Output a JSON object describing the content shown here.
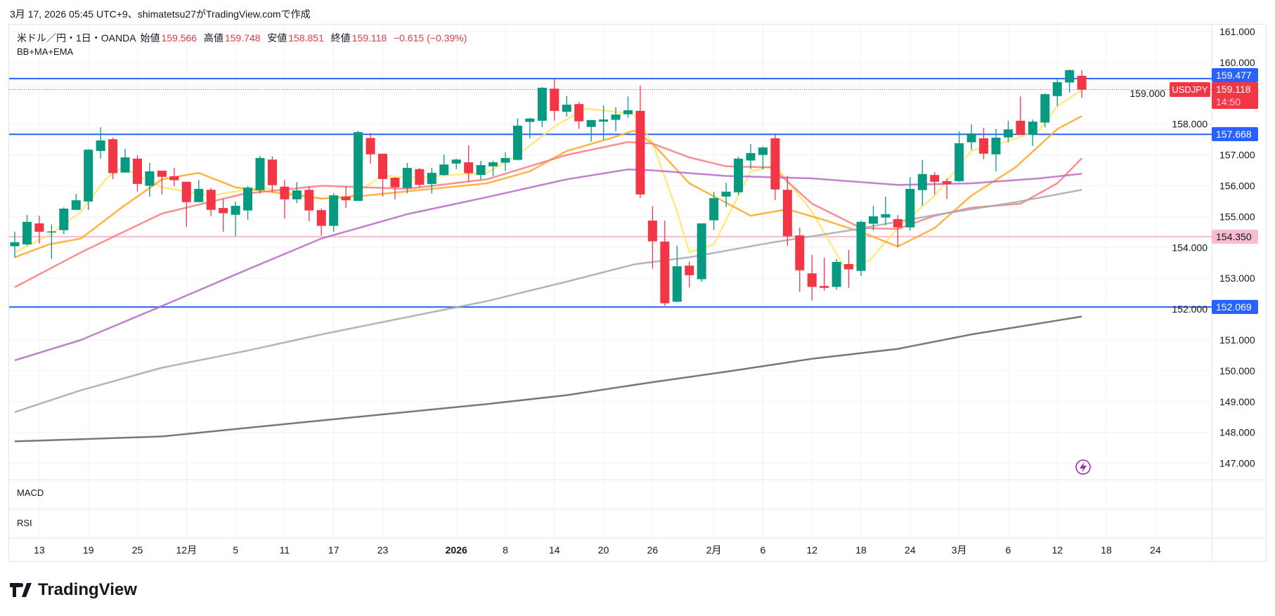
{
  "caption": "3月 17, 2026 05:45 UTC+9、shimatetsu27がTradingView.comで作成",
  "legend": {
    "symbol": "米ドル／円・1日・OANDA",
    "open_label": "始値",
    "open": "159.566",
    "high_label": "高値",
    "high": "159.748",
    "low_label": "安値",
    "low": "158.851",
    "close_label": "終値",
    "close": "159.118",
    "change": "−0.615 (−0.39%)",
    "indicators": "BB+MA+EMA"
  },
  "panes": {
    "macd": "MACD",
    "rsi": "RSI"
  },
  "symbol_tag": "USDJPY",
  "price_labels": {
    "last": "159.118",
    "countdown": "14:50",
    "levels": [
      {
        "text": "159.477",
        "value": 159.477,
        "color": "#2962FF"
      },
      {
        "text": "157.668",
        "value": 157.668,
        "color": "#2962FF"
      },
      {
        "text": "154.350",
        "value": 154.35,
        "color": "#f8bbd0"
      },
      {
        "text": "152.069",
        "value": 152.069,
        "color": "#2962FF"
      }
    ]
  },
  "brand": "TradingView",
  "colors": {
    "up": "#089981",
    "down": "#F23645",
    "level": "#2962FF",
    "pink": "#f8bbd0"
  },
  "chart_data": {
    "type": "candlestick",
    "symbol": "USDJPY",
    "y_ticks": [
      "147.000",
      "148.000",
      "149.000",
      "150.000",
      "151.000",
      "152.000",
      "153.000",
      "154.000",
      "155.000",
      "156.000",
      "157.000",
      "158.000",
      "159.000",
      "160.000",
      "161.000"
    ],
    "ylim": [
      146.7,
      161.25
    ],
    "x_ticks": [
      {
        "i": 2,
        "label": "13"
      },
      {
        "i": 6,
        "label": "19"
      },
      {
        "i": 10,
        "label": "25"
      },
      {
        "i": 14,
        "label": "12月"
      },
      {
        "i": 18,
        "label": "5"
      },
      {
        "i": 22,
        "label": "11"
      },
      {
        "i": 26,
        "label": "17"
      },
      {
        "i": 30,
        "label": "23"
      },
      {
        "i": 36,
        "label": "2026",
        "bold": true
      },
      {
        "i": 40,
        "label": "8"
      },
      {
        "i": 44,
        "label": "14"
      },
      {
        "i": 48,
        "label": "20"
      },
      {
        "i": 52,
        "label": "26"
      },
      {
        "i": 57,
        "label": "2月"
      },
      {
        "i": 61,
        "label": "6"
      },
      {
        "i": 65,
        "label": "12"
      },
      {
        "i": 69,
        "label": "18"
      },
      {
        "i": 73,
        "label": "24"
      },
      {
        "i": 77,
        "label": "3月"
      },
      {
        "i": 81,
        "label": "6"
      },
      {
        "i": 85,
        "label": "12"
      },
      {
        "i": 89,
        "label": "18"
      },
      {
        "i": 93,
        "label": "24"
      }
    ],
    "ohlc": [
      [
        154.04,
        154.51,
        153.67,
        154.17
      ],
      [
        154.1,
        155.05,
        154.05,
        154.83
      ],
      [
        154.78,
        155.03,
        154.13,
        154.51
      ],
      [
        154.5,
        154.75,
        153.63,
        154.52
      ],
      [
        154.56,
        155.3,
        154.43,
        155.26
      ],
      [
        155.22,
        155.74,
        155.22,
        155.53
      ],
      [
        155.49,
        157.19,
        155.22,
        157.17
      ],
      [
        157.13,
        157.9,
        156.88,
        157.47
      ],
      [
        157.51,
        157.56,
        156.22,
        156.41
      ],
      [
        156.43,
        157.2,
        156.43,
        156.92
      ],
      [
        156.88,
        156.99,
        155.81,
        156.06
      ],
      [
        156.0,
        156.74,
        155.65,
        156.47
      ],
      [
        156.49,
        156.49,
        155.72,
        156.29
      ],
      [
        156.31,
        156.58,
        155.99,
        156.18
      ],
      [
        156.13,
        156.13,
        154.67,
        155.47
      ],
      [
        155.47,
        156.19,
        155.47,
        155.9
      ],
      [
        155.87,
        155.93,
        155.02,
        155.22
      ],
      [
        155.28,
        155.57,
        154.51,
        155.11
      ],
      [
        155.06,
        155.49,
        154.36,
        155.35
      ],
      [
        155.2,
        155.99,
        154.9,
        155.94
      ],
      [
        155.86,
        156.97,
        155.75,
        156.9
      ],
      [
        156.85,
        156.95,
        155.81,
        156.02
      ],
      [
        155.97,
        156.18,
        154.94,
        155.56
      ],
      [
        155.56,
        156.12,
        155.44,
        155.85
      ],
      [
        155.87,
        155.99,
        154.85,
        155.2
      ],
      [
        155.21,
        155.27,
        154.39,
        154.7
      ],
      [
        154.7,
        155.76,
        154.51,
        155.69
      ],
      [
        155.65,
        155.99,
        155.28,
        155.53
      ],
      [
        155.51,
        157.79,
        155.51,
        157.74
      ],
      [
        157.55,
        157.71,
        156.72,
        157.02
      ],
      [
        157.04,
        157.04,
        155.65,
        156.22
      ],
      [
        156.26,
        156.28,
        155.56,
        155.95
      ],
      [
        155.93,
        156.74,
        155.76,
        156.58
      ],
      [
        156.54,
        156.58,
        155.94,
        156.03
      ],
      [
        156.06,
        156.58,
        155.75,
        156.42
      ],
      [
        156.35,
        157.01,
        156.33,
        156.69
      ],
      [
        156.72,
        156.88,
        156.54,
        156.85
      ],
      [
        156.76,
        157.31,
        156.14,
        156.41
      ],
      [
        156.35,
        156.81,
        156.18,
        156.67
      ],
      [
        156.63,
        156.81,
        156.31,
        156.76
      ],
      [
        156.75,
        157.08,
        156.48,
        156.9
      ],
      [
        156.84,
        158.19,
        156.82,
        157.95
      ],
      [
        158.07,
        158.21,
        157.54,
        158.18
      ],
      [
        158.11,
        159.2,
        157.91,
        159.18
      ],
      [
        159.15,
        159.48,
        158.11,
        158.43
      ],
      [
        158.4,
        158.91,
        158.25,
        158.63
      ],
      [
        158.65,
        158.72,
        157.85,
        158.09
      ],
      [
        157.91,
        158.13,
        157.43,
        158.13
      ],
      [
        158.08,
        158.61,
        157.49,
        158.15
      ],
      [
        158.14,
        158.55,
        157.77,
        158.31
      ],
      [
        158.32,
        158.9,
        158.21,
        158.45
      ],
      [
        158.43,
        159.25,
        155.61,
        155.72
      ],
      [
        154.87,
        155.34,
        153.31,
        154.2
      ],
      [
        154.19,
        154.87,
        152.11,
        152.19
      ],
      [
        152.24,
        154.05,
        152.22,
        153.39
      ],
      [
        153.41,
        153.54,
        152.7,
        153.1
      ],
      [
        152.97,
        154.78,
        152.88,
        154.78
      ],
      [
        154.88,
        155.8,
        154.57,
        155.6
      ],
      [
        155.65,
        156.1,
        155.31,
        155.81
      ],
      [
        155.79,
        156.94,
        155.7,
        156.88
      ],
      [
        156.82,
        157.35,
        156.54,
        157.06
      ],
      [
        157.0,
        157.28,
        156.53,
        157.24
      ],
      [
        157.54,
        157.66,
        155.54,
        155.88
      ],
      [
        155.87,
        156.31,
        154.05,
        154.36
      ],
      [
        154.39,
        154.64,
        152.56,
        153.26
      ],
      [
        153.16,
        153.76,
        152.28,
        152.72
      ],
      [
        152.75,
        153.66,
        152.6,
        152.69
      ],
      [
        152.72,
        153.63,
        152.63,
        153.53
      ],
      [
        153.46,
        153.92,
        152.69,
        153.29
      ],
      [
        153.24,
        154.87,
        153.08,
        154.83
      ],
      [
        154.77,
        155.35,
        154.56,
        155.01
      ],
      [
        154.97,
        155.65,
        154.72,
        155.08
      ],
      [
        154.92,
        155.05,
        154.01,
        154.65
      ],
      [
        154.65,
        156.28,
        154.54,
        155.9
      ],
      [
        155.86,
        156.83,
        155.36,
        156.38
      ],
      [
        156.35,
        156.44,
        155.72,
        156.13
      ],
      [
        156.15,
        156.24,
        155.57,
        156.06
      ],
      [
        156.15,
        157.76,
        156.13,
        157.38
      ],
      [
        157.41,
        157.99,
        157.16,
        157.7
      ],
      [
        157.54,
        157.88,
        156.86,
        157.04
      ],
      [
        157.02,
        157.85,
        156.47,
        157.56
      ],
      [
        157.57,
        158.11,
        157.41,
        157.83
      ],
      [
        158.11,
        158.9,
        157.66,
        157.66
      ],
      [
        157.66,
        158.15,
        157.29,
        158.08
      ],
      [
        158.05,
        159.0,
        157.89,
        158.97
      ],
      [
        158.91,
        159.45,
        158.59,
        159.36
      ],
      [
        159.35,
        159.77,
        159.03,
        159.75
      ],
      [
        159.566,
        159.748,
        158.851,
        159.118
      ]
    ],
    "lines": [
      {
        "name": "ema-short",
        "color": "#ffe66b",
        "points": [
          [
            0,
            153.84
          ],
          [
            2.8,
            154.4
          ],
          [
            5.4,
            155.16
          ],
          [
            7.4,
            156.21
          ],
          [
            8.7,
            156.6
          ],
          [
            12,
            155.95
          ],
          [
            16,
            155.68
          ],
          [
            20,
            155.95
          ],
          [
            25,
            155.6
          ],
          [
            27.3,
            155.63
          ],
          [
            30,
            156.34
          ],
          [
            32,
            156.26
          ],
          [
            38.5,
            156.42
          ],
          [
            41,
            157.0
          ],
          [
            44,
            157.92
          ],
          [
            46.5,
            158.5
          ],
          [
            49,
            158.4
          ],
          [
            50.5,
            158.32
          ],
          [
            52,
            157.39
          ],
          [
            54,
            155.16
          ],
          [
            55,
            153.84
          ],
          [
            57,
            154.1
          ],
          [
            60,
            156.47
          ],
          [
            62,
            156.66
          ],
          [
            65,
            155.16
          ],
          [
            67.7,
            153.32
          ],
          [
            69.7,
            153.58
          ],
          [
            72,
            154.63
          ],
          [
            75,
            155.68
          ],
          [
            78,
            157.13
          ],
          [
            81,
            157.45
          ],
          [
            83.5,
            157.79
          ],
          [
            85,
            158.58
          ],
          [
            87,
            159.11
          ]
        ]
      },
      {
        "name": "ema-mid",
        "color": "#ffa726",
        "points": [
          [
            0,
            153.68
          ],
          [
            2.8,
            154.1
          ],
          [
            5.4,
            154.29
          ],
          [
            8.7,
            155.29
          ],
          [
            12,
            156.21
          ],
          [
            15,
            156.42
          ],
          [
            18,
            155.95
          ],
          [
            22,
            155.74
          ],
          [
            25,
            155.58
          ],
          [
            28.6,
            155.68
          ],
          [
            32,
            155.82
          ],
          [
            38.5,
            156.08
          ],
          [
            42,
            156.47
          ],
          [
            45,
            157.13
          ],
          [
            48.5,
            157.53
          ],
          [
            50.5,
            157.79
          ],
          [
            52,
            157.37
          ],
          [
            55,
            156.08
          ],
          [
            60,
            155.03
          ],
          [
            63,
            155.24
          ],
          [
            66,
            154.89
          ],
          [
            69,
            154.5
          ],
          [
            72,
            154.03
          ],
          [
            75,
            154.63
          ],
          [
            78,
            155.68
          ],
          [
            81.6,
            156.6
          ],
          [
            85,
            157.84
          ],
          [
            87,
            158.26
          ]
        ]
      },
      {
        "name": "ma-25",
        "color": "#f77c80",
        "points": [
          [
            0,
            152.71
          ],
          [
            5.4,
            153.84
          ],
          [
            12,
            155.1
          ],
          [
            18.7,
            155.74
          ],
          [
            25,
            156.0
          ],
          [
            28.6,
            155.95
          ],
          [
            32,
            155.9
          ],
          [
            38.5,
            156.21
          ],
          [
            45,
            157.0
          ],
          [
            50,
            157.42
          ],
          [
            52,
            157.37
          ],
          [
            55,
            156.92
          ],
          [
            58,
            156.63
          ],
          [
            61.7,
            156.6
          ],
          [
            65,
            155.42
          ],
          [
            69,
            154.63
          ],
          [
            72,
            154.6
          ],
          [
            75,
            155.03
          ],
          [
            78,
            155.29
          ],
          [
            82,
            155.42
          ],
          [
            85,
            156.08
          ],
          [
            87,
            156.89
          ]
        ]
      },
      {
        "name": "ma-75",
        "color": "#ba68c8",
        "points": [
          [
            0,
            150.34
          ],
          [
            5.4,
            151.0
          ],
          [
            12,
            152.1
          ],
          [
            18.7,
            153.24
          ],
          [
            25,
            154.29
          ],
          [
            32,
            155.08
          ],
          [
            38.5,
            155.63
          ],
          [
            45,
            156.21
          ],
          [
            50,
            156.53
          ],
          [
            52,
            156.5
          ],
          [
            58,
            156.32
          ],
          [
            65,
            156.24
          ],
          [
            72,
            156.03
          ],
          [
            78,
            156.08
          ],
          [
            83.5,
            156.24
          ],
          [
            87,
            156.39
          ]
        ]
      },
      {
        "name": "ma-100",
        "color": "#a8a8ad",
        "points": [
          [
            0,
            148.66
          ],
          [
            5.4,
            149.37
          ],
          [
            12,
            150.1
          ],
          [
            18.7,
            150.63
          ],
          [
            25,
            151.18
          ],
          [
            32,
            151.74
          ],
          [
            38.5,
            152.26
          ],
          [
            45,
            152.89
          ],
          [
            50.5,
            153.45
          ],
          [
            55,
            153.68
          ],
          [
            61.7,
            154.16
          ],
          [
            68,
            154.55
          ],
          [
            75,
            155.05
          ],
          [
            81.6,
            155.47
          ],
          [
            87,
            155.87
          ]
        ]
      },
      {
        "name": "ma-200",
        "color": "#5d606b",
        "points": [
          [
            0,
            147.71
          ],
          [
            12,
            147.87
          ],
          [
            25,
            148.39
          ],
          [
            38.5,
            148.92
          ],
          [
            45,
            149.21
          ],
          [
            52,
            149.63
          ],
          [
            58,
            149.97
          ],
          [
            65,
            150.39
          ],
          [
            72,
            150.71
          ],
          [
            78,
            151.18
          ],
          [
            85,
            151.63
          ],
          [
            87,
            151.76
          ]
        ]
      }
    ]
  }
}
